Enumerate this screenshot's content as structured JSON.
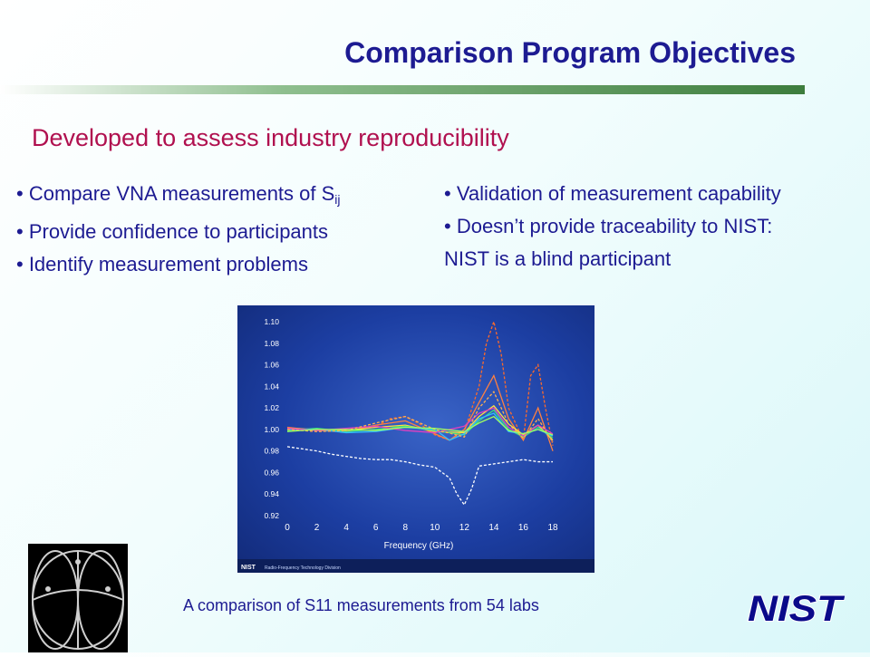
{
  "slide": {
    "title": "Comparison Program Objectives",
    "subtitle": "Developed to assess industry reproducibility",
    "left_bullets": [
      {
        "text": "• Compare VNA measurements of S",
        "sub": "ij"
      },
      {
        "text": "• Provide confidence to participants"
      },
      {
        "text": "• Identify measurement problems"
      }
    ],
    "right_bullets": [
      {
        "text": "• Validation of measurement capability"
      },
      {
        "text": "• Doesn’t provide traceability to NIST:"
      },
      {
        "text": "NIST is a blind participant"
      }
    ],
    "caption": "A comparison of S11 measurements from 54 labs",
    "colors": {
      "title": "#1d1b92",
      "subtitle": "#b0104f",
      "bullet": "#1d1b92"
    }
  },
  "figure": {
    "footer_logo": "NIST",
    "footer_text": "Radio-Frequency Technology Division"
  },
  "logos": {
    "smith_chart_icon": "smith-chart",
    "nist_logo_text": "NIST"
  },
  "chart_data": {
    "type": "line",
    "xlabel": "Frequency (GHz)",
    "ylabel": "",
    "x_ticks": [
      0,
      2,
      4,
      6,
      8,
      10,
      12,
      14,
      16,
      18
    ],
    "y_ticks": [
      "1.10",
      "1.08",
      "1.06",
      "1.04",
      "1.02",
      "1.00",
      "0.98",
      "0.96",
      "0.94",
      "0.92"
    ],
    "xlim": [
      0,
      18
    ],
    "ylim": [
      0.92,
      1.1
    ],
    "grid": false,
    "series_count_note": "54 labs",
    "series": [
      {
        "color": "#ffffff",
        "dashed": true,
        "x": [
          0,
          1,
          2,
          3,
          4,
          5,
          6,
          7,
          8,
          9,
          10,
          11,
          11.5,
          12,
          12.5,
          13,
          14,
          15,
          16,
          17,
          18
        ],
        "y": [
          0.984,
          0.982,
          0.98,
          0.977,
          0.975,
          0.973,
          0.972,
          0.972,
          0.97,
          0.967,
          0.965,
          0.955,
          0.94,
          0.93,
          0.945,
          0.966,
          0.968,
          0.97,
          0.972,
          0.97,
          0.97
        ]
      },
      {
        "color": "#ff6a2a",
        "dashed": true,
        "x": [
          0,
          2,
          4,
          6,
          7,
          8,
          9,
          10,
          11,
          12,
          13,
          13.5,
          14,
          14.5,
          15,
          16,
          16.5,
          17,
          17.5,
          18
        ],
        "y": [
          1.0,
          0.999,
          0.998,
          1.003,
          1.01,
          1.012,
          1.005,
          0.995,
          0.99,
          0.998,
          1.04,
          1.08,
          1.1,
          1.07,
          1.02,
          0.99,
          1.05,
          1.06,
          1.02,
          0.985
        ]
      },
      {
        "color": "#ff8040",
        "dashed": false,
        "x": [
          0,
          2,
          4,
          6,
          8,
          10,
          11,
          12,
          13,
          14,
          15,
          16,
          17,
          18
        ],
        "y": [
          1.002,
          0.999,
          0.998,
          1.004,
          1.008,
          0.996,
          0.99,
          1.0,
          1.025,
          1.05,
          1.01,
          0.99,
          1.02,
          0.98
        ]
      },
      {
        "color": "#ffe040",
        "dashed": false,
        "x": [
          0,
          2,
          4,
          6,
          8,
          10,
          12,
          13,
          14,
          15,
          16,
          17,
          18
        ],
        "y": [
          1.001,
          1.0,
          0.999,
          1.002,
          1.004,
          0.998,
          0.997,
          1.012,
          1.022,
          1.005,
          0.995,
          1.004,
          0.99
        ]
      },
      {
        "color": "#40e080",
        "dashed": false,
        "x": [
          0,
          2,
          4,
          6,
          8,
          10,
          12,
          13,
          14,
          15,
          16,
          17,
          18
        ],
        "y": [
          0.999,
          1.001,
          0.998,
          1.0,
          1.003,
          0.999,
          0.995,
          1.008,
          1.018,
          1.0,
          0.993,
          1.002,
          0.992
        ]
      },
      {
        "color": "#30c0ff",
        "dashed": false,
        "x": [
          0,
          2,
          4,
          6,
          8,
          10,
          11,
          12,
          13,
          14,
          15,
          16,
          17,
          18
        ],
        "y": [
          1.0,
          1.0,
          0.997,
          0.998,
          1.002,
          1.0,
          0.99,
          0.996,
          1.01,
          1.015,
          0.998,
          0.996,
          1.0,
          0.994
        ]
      },
      {
        "color": "#e040c0",
        "dashed": false,
        "x": [
          0,
          2,
          4,
          6,
          8,
          10,
          12,
          13,
          14,
          15,
          16,
          17,
          18
        ],
        "y": [
          1.001,
          0.999,
          1.001,
          1.003,
          0.999,
          0.997,
          1.003,
          1.015,
          1.02,
          1.002,
          0.994,
          1.004,
          0.996
        ]
      },
      {
        "color": "#ffb050",
        "dashed": true,
        "x": [
          0,
          2,
          4,
          6,
          8,
          10,
          12,
          13,
          14,
          15,
          16,
          17,
          18
        ],
        "y": [
          1.0,
          0.998,
          0.999,
          1.006,
          1.012,
          1.0,
          0.993,
          1.02,
          1.035,
          1.005,
          0.992,
          1.01,
          0.988
        ]
      },
      {
        "color": "#a0ff60",
        "dashed": false,
        "x": [
          0,
          2,
          4,
          6,
          8,
          10,
          12,
          13,
          14,
          15,
          16,
          17,
          18
        ],
        "y": [
          0.998,
          1.0,
          1.0,
          0.999,
          1.002,
          1.001,
          0.998,
          1.006,
          1.012,
          0.999,
          0.996,
          1.0,
          0.995
        ]
      }
    ]
  }
}
